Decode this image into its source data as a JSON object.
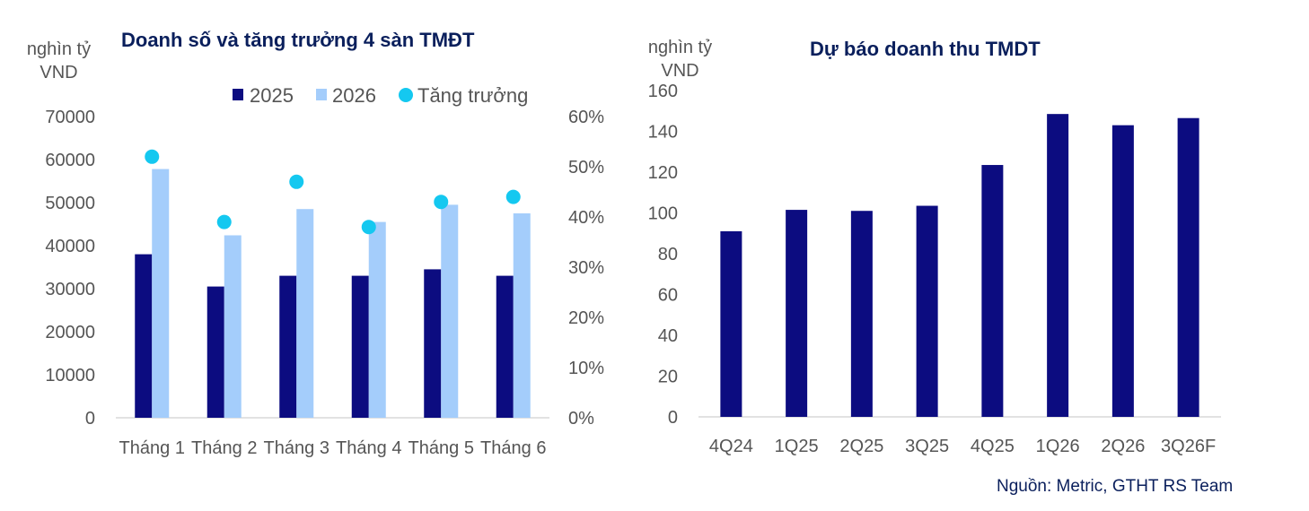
{
  "colors": {
    "dark": "#0c0c80",
    "light": "#a4cdfb",
    "growth": "#14c8f0",
    "axis": "#d9d9d9"
  },
  "left_chart": {
    "title": "Doanh số và tăng trưởng 4 sàn TMĐT",
    "unit_line1": "nghìn tỷ",
    "unit_line2": "VND",
    "legend": {
      "s1": "2025",
      "s2": "2026",
      "s3": "Tăng trưởng"
    },
    "y_ticks": [
      "70000",
      "60000",
      "50000",
      "40000",
      "30000",
      "20000",
      "10000",
      "0"
    ],
    "y2_ticks": [
      "60%",
      "50%",
      "40%",
      "30%",
      "20%",
      "10%",
      "0%"
    ]
  },
  "right_chart": {
    "title": "Dự báo doanh thu TMDT",
    "unit_line1": "nghìn tỷ",
    "unit_line2": "VND",
    "y_ticks": [
      "160",
      "140",
      "120",
      "100",
      "80",
      "60",
      "40",
      "20",
      "0"
    ]
  },
  "source": "Nguồn: Metric, GTHT RS Team",
  "chart_data": [
    {
      "type": "bar",
      "title": "Doanh số và tăng trưởng 4 sàn TMĐT",
      "ylabel": "nghìn tỷ VND",
      "categories": [
        "Tháng 1",
        "Tháng 2",
        "Tháng 3",
        "Tháng 4",
        "Tháng 5",
        "Tháng 6"
      ],
      "series": [
        {
          "name": "2025",
          "values": [
            38000,
            30500,
            33000,
            33000,
            34500,
            33000
          ]
        },
        {
          "name": "2026",
          "values": [
            57800,
            42400,
            48500,
            45500,
            49500,
            47500
          ]
        },
        {
          "name": "Tăng trưởng",
          "type": "scatter",
          "axis": "secondary",
          "values": [
            0.52,
            0.39,
            0.47,
            0.38,
            0.43,
            0.44
          ]
        }
      ],
      "ylim": [
        0,
        70000
      ],
      "y2lim": [
        0,
        0.6
      ],
      "legend": "top"
    },
    {
      "type": "bar",
      "title": "Dự báo doanh thu TMDT",
      "ylabel": "nghìn tỷ VND",
      "categories": [
        "4Q24",
        "1Q25",
        "2Q25",
        "3Q25",
        "4Q25",
        "1Q26",
        "2Q26",
        "3Q26F"
      ],
      "values": [
        91,
        101.5,
        101,
        103.5,
        123.5,
        148.5,
        143,
        146.5
      ],
      "ylim": [
        0,
        160
      ]
    }
  ]
}
